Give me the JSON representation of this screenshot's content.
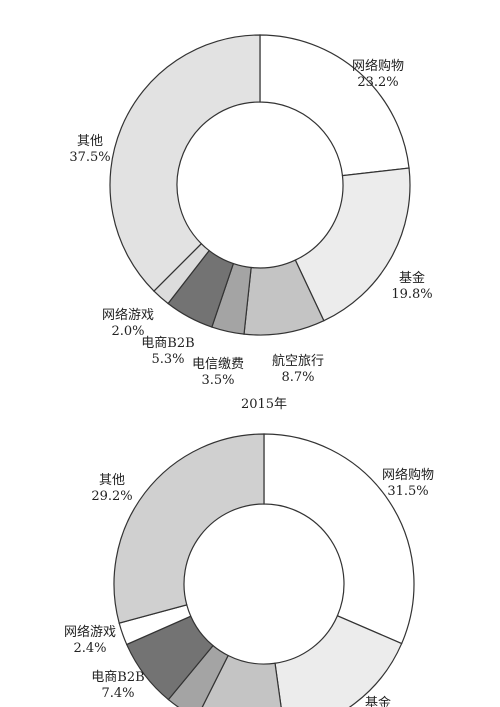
{
  "chart_data": [
    {
      "type": "pie",
      "caption": "2015年",
      "series": [
        {
          "label": "网络购物",
          "pct_label": "23.2%",
          "value": 23.2,
          "color": "#ffffff"
        },
        {
          "label": "基金",
          "pct_label": "19.8%",
          "value": 19.8,
          "color": "#ececec"
        },
        {
          "label": "航空旅行",
          "pct_label": "8.7%",
          "value": 8.7,
          "color": "#c4c4c4"
        },
        {
          "label": "电信缴费",
          "pct_label": "3.5%",
          "value": 3.5,
          "color": "#a4a4a4"
        },
        {
          "label": "电商B2B",
          "pct_label": "5.3%",
          "value": 5.3,
          "color": "#737373"
        },
        {
          "label": "网络游戏",
          "pct_label": "2.0%",
          "value": 2.0,
          "color": "#dcdcdc"
        },
        {
          "label": "其他",
          "pct_label": "37.5%",
          "value": 37.5,
          "color": "#e2e2e2"
        }
      ]
    },
    {
      "type": "pie",
      "caption": "",
      "series": [
        {
          "label": "网络购物",
          "pct_label": "31.5%",
          "value": 31.5,
          "color": "#ffffff"
        },
        {
          "label": "基金",
          "pct_label": "",
          "value": 16.3,
          "color": "#ececec"
        },
        {
          "label": "",
          "pct_label": "",
          "value": 9.6,
          "color": "#c4c4c4"
        },
        {
          "label": "",
          "pct_label": "",
          "value": 3.6,
          "color": "#a4a4a4"
        },
        {
          "label": "电商B2B",
          "pct_label": "7.4%",
          "value": 7.4,
          "color": "#737373"
        },
        {
          "label": "网络游戏",
          "pct_label": "2.4%",
          "value": 2.4,
          "color": "#ffffff"
        },
        {
          "label": "其他",
          "pct_label": "29.2%",
          "value": 29.2,
          "color": "#d0d0d0"
        }
      ]
    }
  ]
}
